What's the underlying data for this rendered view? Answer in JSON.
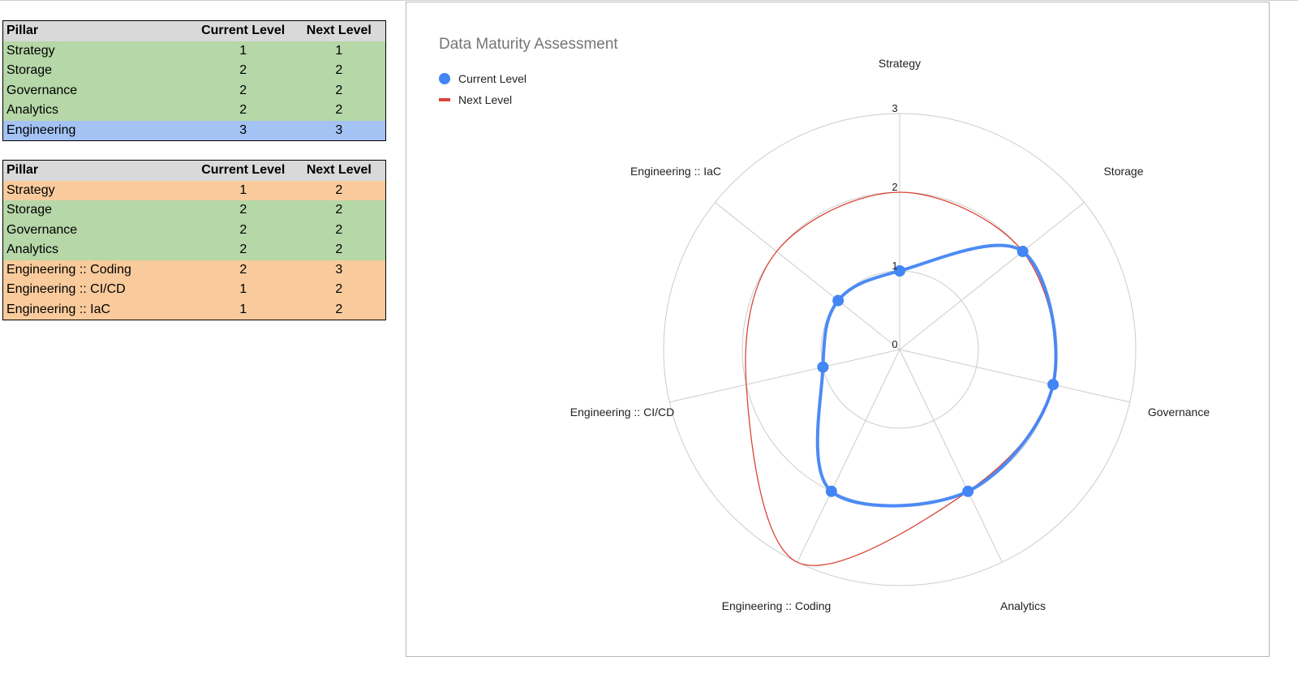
{
  "tables": [
    {
      "headers": [
        "Pillar",
        "Current Level",
        "Next Level"
      ],
      "rows": [
        {
          "pillar": "Strategy",
          "current": "1",
          "next": "1",
          "color": "#b6d7a8"
        },
        {
          "pillar": "Storage",
          "current": "2",
          "next": "2",
          "color": "#b6d7a8"
        },
        {
          "pillar": "Governance",
          "current": "2",
          "next": "2",
          "color": "#b6d7a8"
        },
        {
          "pillar": "Analytics",
          "current": "2",
          "next": "2",
          "color": "#b6d7a8"
        },
        {
          "pillar": "Engineering",
          "current": "3",
          "next": "3",
          "color": "#a4c2f4"
        }
      ]
    },
    {
      "headers": [
        "Pillar",
        "Current Level",
        "Next Level"
      ],
      "rows": [
        {
          "pillar": "Strategy",
          "current": "1",
          "next": "2",
          "color": "#f9cb9c"
        },
        {
          "pillar": "Storage",
          "current": "2",
          "next": "2",
          "color": "#b6d7a8"
        },
        {
          "pillar": "Governance",
          "current": "2",
          "next": "2",
          "color": "#b6d7a8"
        },
        {
          "pillar": "Analytics",
          "current": "2",
          "next": "2",
          "color": "#b6d7a8"
        },
        {
          "pillar": "Engineering :: Coding",
          "current": "2",
          "next": "3",
          "color": "#f9cb9c"
        },
        {
          "pillar": "Engineering :: CI/CD",
          "current": "1",
          "next": "2",
          "color": "#f9cb9c"
        },
        {
          "pillar": "Engineering :: IaC",
          "current": "1",
          "next": "2",
          "color": "#f9cb9c"
        }
      ]
    }
  ],
  "chart_data": {
    "type": "radar",
    "title": "Data Maturity Assessment",
    "categories": [
      "Strategy",
      "Storage",
      "Governance",
      "Analytics",
      "Engineering :: Coding",
      "Engineering :: CI/CD",
      "Engineering :: IaC"
    ],
    "rlim": [
      0,
      3
    ],
    "ticks": [
      "0",
      "1",
      "2",
      "3"
    ],
    "legend": "top-left",
    "grid": true,
    "series": [
      {
        "name": "Current Level",
        "values": [
          1,
          2,
          2,
          2,
          2,
          1,
          1
        ],
        "color": "#4285f4",
        "markers": true
      },
      {
        "name": "Next Level",
        "values": [
          2,
          2,
          2,
          2,
          3,
          2,
          2
        ],
        "color": "#db4437",
        "markers": false
      }
    ]
  }
}
